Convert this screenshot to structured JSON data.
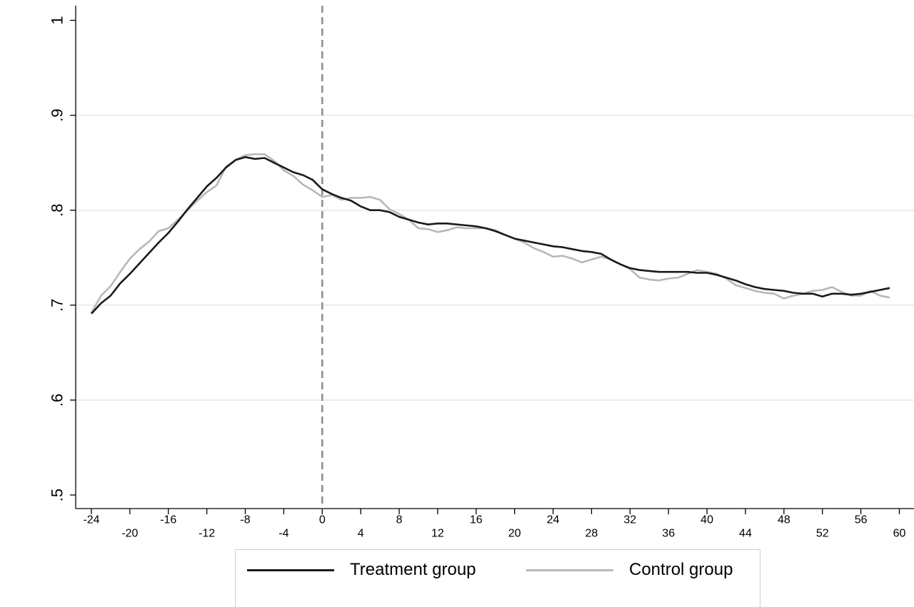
{
  "chart_data": {
    "type": "line",
    "title": "",
    "xlabel": "",
    "ylabel": "",
    "xlim": [
      -24,
      60
    ],
    "ylim": [
      0.5,
      1.0
    ],
    "xticks_top_row": [
      "-24",
      "-16",
      "-8",
      "0",
      "8",
      "16",
      "24",
      "32",
      "40",
      "48",
      "56"
    ],
    "xticks_bottom_row": [
      "-20",
      "-12",
      "-4",
      "4",
      "12",
      "20",
      "28",
      "36",
      "44",
      "52",
      "60"
    ],
    "yticks": [
      ".5",
      ".6",
      ".7",
      ".8",
      ".9",
      "1"
    ],
    "grid": "horizontal",
    "reference_line": {
      "x": 0,
      "style": "dashed"
    },
    "legend": "bottom",
    "series": [
      {
        "name": "Treatment group",
        "color": "#1a1a1a",
        "x": [
          -24,
          -23,
          -22,
          -21,
          -20,
          -19,
          -18,
          -17,
          -16,
          -15,
          -14,
          -13,
          -12,
          -11,
          -10,
          -9,
          -8,
          -7,
          -6,
          -5,
          -4,
          -3,
          -2,
          -1,
          0,
          1,
          2,
          3,
          4,
          5,
          6,
          7,
          8,
          9,
          10,
          11,
          12,
          13,
          14,
          15,
          16,
          17,
          18,
          19,
          20,
          21,
          22,
          23,
          24,
          25,
          26,
          27,
          28,
          29,
          30,
          31,
          32,
          33,
          34,
          35,
          36,
          37,
          38,
          39,
          40,
          41,
          42,
          43,
          44,
          45,
          46,
          47,
          48,
          49,
          50,
          51,
          52,
          53,
          54,
          55,
          56,
          57,
          58,
          59
        ],
        "y": [
          0.691,
          0.702,
          0.71,
          0.723,
          0.733,
          0.744,
          0.755,
          0.766,
          0.776,
          0.788,
          0.801,
          0.813,
          0.825,
          0.834,
          0.845,
          0.853,
          0.856,
          0.854,
          0.855,
          0.85,
          0.845,
          0.84,
          0.837,
          0.832,
          0.822,
          0.817,
          0.813,
          0.81,
          0.804,
          0.8,
          0.8,
          0.798,
          0.793,
          0.79,
          0.787,
          0.785,
          0.786,
          0.786,
          0.785,
          0.784,
          0.783,
          0.781,
          0.778,
          0.774,
          0.77,
          0.768,
          0.766,
          0.764,
          0.762,
          0.761,
          0.759,
          0.757,
          0.756,
          0.754,
          0.748,
          0.743,
          0.739,
          0.737,
          0.736,
          0.735,
          0.735,
          0.735,
          0.735,
          0.734,
          0.734,
          0.732,
          0.729,
          0.726,
          0.722,
          0.719,
          0.717,
          0.716,
          0.715,
          0.713,
          0.712,
          0.712,
          0.709,
          0.712,
          0.712,
          0.711,
          0.712,
          0.714,
          0.716,
          0.718
        ]
      },
      {
        "name": "Control group",
        "color": "#b8b8b8",
        "x": [
          -24,
          -23,
          -22,
          -21,
          -20,
          -19,
          -18,
          -17,
          -16,
          -15,
          -14,
          -13,
          -12,
          -11,
          -10,
          -9,
          -8,
          -7,
          -6,
          -5,
          -4,
          -3,
          -2,
          -1,
          0,
          1,
          2,
          3,
          4,
          5,
          6,
          7,
          8,
          9,
          10,
          11,
          12,
          13,
          14,
          15,
          16,
          17,
          18,
          19,
          20,
          21,
          22,
          23,
          24,
          25,
          26,
          27,
          28,
          29,
          30,
          31,
          32,
          33,
          34,
          35,
          36,
          37,
          38,
          39,
          40,
          41,
          42,
          43,
          44,
          45,
          46,
          47,
          48,
          49,
          50,
          51,
          52,
          53,
          54,
          55,
          56,
          57,
          58,
          59
        ],
        "y": [
          0.692,
          0.71,
          0.72,
          0.735,
          0.749,
          0.759,
          0.767,
          0.778,
          0.781,
          0.79,
          0.8,
          0.81,
          0.819,
          0.826,
          0.846,
          0.853,
          0.858,
          0.859,
          0.859,
          0.852,
          0.842,
          0.836,
          0.827,
          0.821,
          0.814,
          0.816,
          0.811,
          0.813,
          0.813,
          0.814,
          0.811,
          0.801,
          0.796,
          0.79,
          0.781,
          0.78,
          0.777,
          0.779,
          0.782,
          0.781,
          0.781,
          0.781,
          0.779,
          0.774,
          0.77,
          0.766,
          0.76,
          0.756,
          0.751,
          0.752,
          0.749,
          0.745,
          0.748,
          0.751,
          0.748,
          0.743,
          0.738,
          0.729,
          0.727,
          0.726,
          0.728,
          0.729,
          0.733,
          0.737,
          0.735,
          0.733,
          0.728,
          0.721,
          0.718,
          0.715,
          0.713,
          0.712,
          0.707,
          0.71,
          0.712,
          0.715,
          0.716,
          0.719,
          0.714,
          0.71,
          0.71,
          0.715,
          0.71,
          0.708
        ]
      }
    ]
  }
}
